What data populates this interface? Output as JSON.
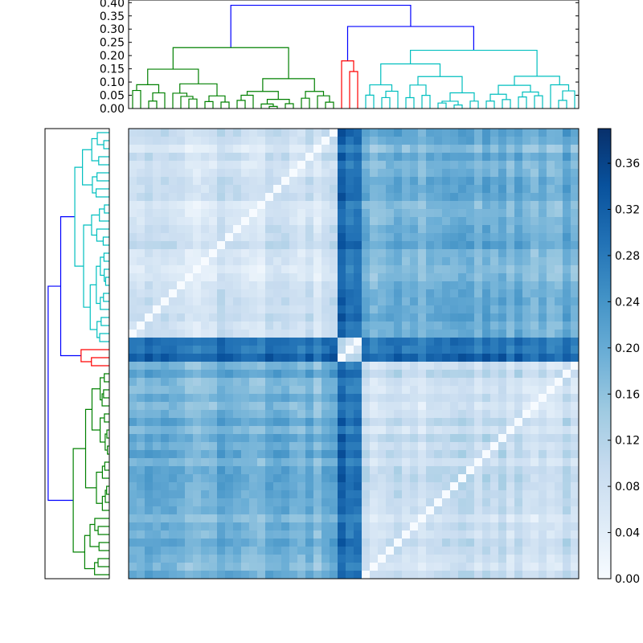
{
  "chart_data": [
    {
      "type": "dendrogram",
      "name": "top-dendrogram",
      "orientation": "top",
      "ylim": [
        0,
        0.41
      ],
      "yticks": [
        "0.00",
        "0.05",
        "0.10",
        "0.15",
        "0.20",
        "0.25",
        "0.30",
        "0.35",
        "0.40"
      ],
      "clusters": [
        {
          "name": "green",
          "color": "#008000",
          "leaf_count": 26,
          "merge_height": 0.23
        },
        {
          "name": "red",
          "color": "#ff0000",
          "leaf_count": 3,
          "merge_height": 0.18
        },
        {
          "name": "cyan",
          "color": "#00bfbf",
          "leaf_count": 27,
          "merge_height": 0.22
        }
      ],
      "top_links": [
        {
          "color": "#0000ff",
          "joins": [
            "red",
            "cyan"
          ],
          "height": 0.31
        },
        {
          "color": "#0000ff",
          "joins": [
            "green",
            "red+cyan"
          ],
          "height": 0.39
        }
      ]
    },
    {
      "type": "dendrogram",
      "name": "left-dendrogram",
      "orientation": "left",
      "clusters": [
        {
          "name": "cyan",
          "color": "#00bfbf",
          "leaf_count": 27
        },
        {
          "name": "red",
          "color": "#ff0000",
          "leaf_count": 3
        },
        {
          "name": "green",
          "color": "#008000",
          "leaf_count": 26
        }
      ],
      "top_links": [
        {
          "color": "#0000ff",
          "joins": [
            "cyan",
            "red"
          ]
        },
        {
          "color": "#0000ff",
          "joins": [
            "cyan+red",
            "green"
          ]
        }
      ]
    },
    {
      "type": "heatmap",
      "name": "distance-matrix",
      "rows": 56,
      "cols": 56,
      "colormap": "Blues",
      "vmin": 0.0,
      "vmax": 0.39,
      "block_order": [
        "green",
        "red",
        "cyan"
      ],
      "block_sizes": [
        26,
        3,
        27
      ],
      "typical_values": {
        "within_green": 0.07,
        "within_cyan": 0.09,
        "green_vs_cyan": 0.19,
        "red_vs_others": 0.3,
        "diagonal": 0.0
      }
    },
    {
      "type": "colorbar",
      "name": "colorbar",
      "range": [
        0.0,
        0.39
      ],
      "tick_labels": [
        "0.00",
        "0.04",
        "0.08",
        "0.12",
        "0.16",
        "0.20",
        "0.24",
        "0.28",
        "0.32",
        "0.36"
      ]
    }
  ]
}
